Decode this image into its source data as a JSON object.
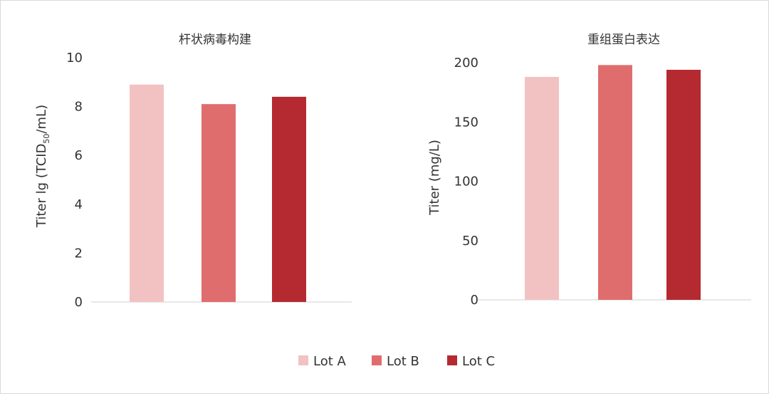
{
  "chart_data": [
    {
      "type": "bar",
      "title": "杆状病毒构建",
      "xlabel": "",
      "ylabel_prefix": "Titer lg (TCID",
      "ylabel_sub": "50",
      "ylabel_suffix": "/mL)",
      "ylim": [
        0,
        10
      ],
      "yticks": [
        "0",
        "2",
        "4",
        "6",
        "8",
        "10"
      ],
      "categories": [
        "Lot A",
        "Lot B",
        "Lot C"
      ],
      "values": [
        8.9,
        8.1,
        8.4
      ],
      "grid": false
    },
    {
      "type": "bar",
      "title": "重组蛋白表达",
      "xlabel": "",
      "ylabel": "Titer (mg/L)",
      "ylim": [
        0,
        200
      ],
      "yticks": [
        "0",
        "50",
        "100",
        "150",
        "200"
      ],
      "categories": [
        "Lot A",
        "Lot B",
        "Lot C"
      ],
      "values": [
        188,
        198,
        194
      ],
      "grid": false
    }
  ],
  "legend": {
    "placement": "bottom",
    "items": [
      {
        "label": "Lot A",
        "color": "#f2c2c2"
      },
      {
        "label": "Lot B",
        "color": "#e06d6e"
      },
      {
        "label": "Lot C",
        "color": "#b52a31"
      }
    ]
  },
  "colors": [
    "#f2c2c2",
    "#e06d6e",
    "#b52a31"
  ]
}
